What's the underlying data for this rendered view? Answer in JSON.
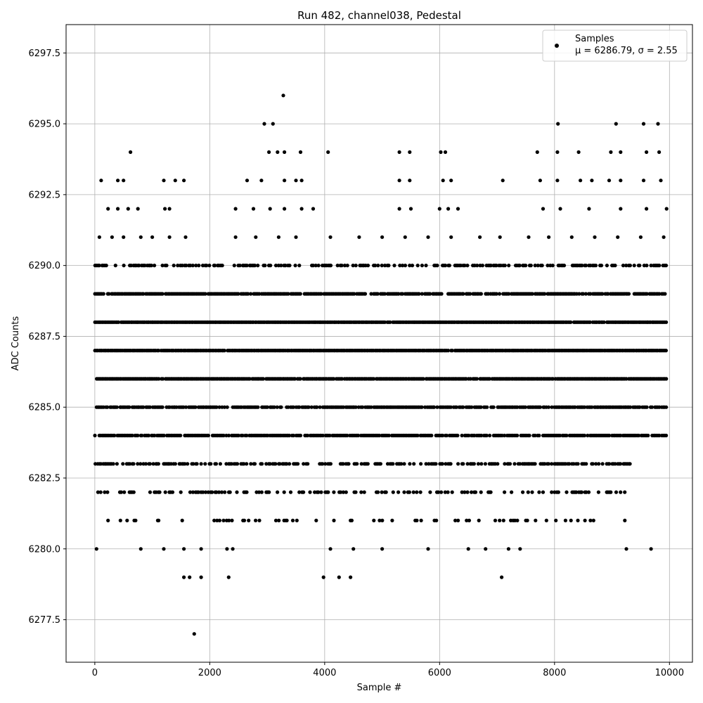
{
  "chart_data": {
    "type": "scatter",
    "title": "Run 482, channel038, Pedestal",
    "xlabel": "Sample #",
    "ylabel": "ADC Counts",
    "xlim": [
      -500,
      10400
    ],
    "ylim": [
      6276.0,
      6298.5
    ],
    "xticks": [
      0,
      2000,
      4000,
      6000,
      8000,
      10000
    ],
    "yticks": [
      6277.5,
      6280.0,
      6282.5,
      6285.0,
      6287.5,
      6290.0,
      6292.5,
      6295.0,
      6297.5
    ],
    "xtick_labels": [
      "0",
      "2000",
      "4000",
      "6000",
      "8000",
      "10000"
    ],
    "ytick_labels": [
      "6277.5",
      "6280.0",
      "6282.5",
      "6285.0",
      "6287.5",
      "6290.0",
      "6292.5",
      "6295.0",
      "6297.5"
    ],
    "grid": true,
    "marker_color": "#000000",
    "legend": {
      "placement": "top-right",
      "entries": [
        "Samples",
        "μ = 6286.79, σ = 2.55"
      ]
    },
    "series": [
      {
        "name": "Samples",
        "x_range": [
          0,
          9950
        ],
        "count": 10000,
        "levels": [
          6277,
          6279,
          6280,
          6281,
          6282,
          6283,
          6284,
          6285,
          6286,
          6287,
          6288,
          6289,
          6290,
          6291,
          6292,
          6293,
          6294,
          6295,
          6296
        ],
        "points": [
          [
            1730,
            6277
          ],
          [
            3280,
            6296
          ],
          [
            2950,
            6295
          ],
          [
            3100,
            6295
          ],
          [
            8060,
            6295
          ],
          [
            9070,
            6295
          ],
          [
            9550,
            6295
          ],
          [
            9800,
            6295
          ],
          [
            620,
            6294
          ],
          [
            3030,
            6294
          ],
          [
            3180,
            6294
          ],
          [
            3300,
            6294
          ],
          [
            3580,
            6294
          ],
          [
            4060,
            6294
          ],
          [
            5300,
            6294
          ],
          [
            5480,
            6294
          ],
          [
            6020,
            6294
          ],
          [
            6100,
            6294
          ],
          [
            7700,
            6294
          ],
          [
            8050,
            6294
          ],
          [
            8420,
            6294
          ],
          [
            8980,
            6294
          ],
          [
            9150,
            6294
          ],
          [
            9600,
            6294
          ],
          [
            9820,
            6294
          ],
          [
            110,
            6293
          ],
          [
            400,
            6293
          ],
          [
            500,
            6293
          ],
          [
            1200,
            6293
          ],
          [
            1400,
            6293
          ],
          [
            1550,
            6293
          ],
          [
            2650,
            6293
          ],
          [
            2900,
            6293
          ],
          [
            3300,
            6293
          ],
          [
            3500,
            6293
          ],
          [
            3600,
            6293
          ],
          [
            5300,
            6293
          ],
          [
            5480,
            6293
          ],
          [
            6060,
            6293
          ],
          [
            6200,
            6293
          ],
          [
            7100,
            6293
          ],
          [
            7750,
            6293
          ],
          [
            8050,
            6293
          ],
          [
            8450,
            6293
          ],
          [
            8650,
            6293
          ],
          [
            8950,
            6293
          ],
          [
            9150,
            6293
          ],
          [
            9550,
            6293
          ],
          [
            9850,
            6293
          ],
          [
            230,
            6292
          ],
          [
            400,
            6292
          ],
          [
            580,
            6292
          ],
          [
            750,
            6292
          ],
          [
            1220,
            6292
          ],
          [
            1300,
            6292
          ],
          [
            2450,
            6292
          ],
          [
            2760,
            6292
          ],
          [
            3050,
            6292
          ],
          [
            3300,
            6292
          ],
          [
            3600,
            6292
          ],
          [
            3800,
            6292
          ],
          [
            5300,
            6292
          ],
          [
            5500,
            6292
          ],
          [
            6000,
            6292
          ],
          [
            6150,
            6292
          ],
          [
            6320,
            6292
          ],
          [
            7800,
            6292
          ],
          [
            8100,
            6292
          ],
          [
            8600,
            6292
          ],
          [
            9150,
            6292
          ],
          [
            9600,
            6292
          ],
          [
            9950,
            6292
          ],
          [
            80,
            6291
          ],
          [
            300,
            6291
          ],
          [
            500,
            6291
          ],
          [
            800,
            6291
          ],
          [
            1000,
            6291
          ],
          [
            1300,
            6291
          ],
          [
            1580,
            6291
          ],
          [
            2450,
            6291
          ],
          [
            2800,
            6291
          ],
          [
            3200,
            6291
          ],
          [
            3500,
            6291
          ],
          [
            4100,
            6291
          ],
          [
            4600,
            6291
          ],
          [
            5000,
            6291
          ],
          [
            5400,
            6291
          ],
          [
            5800,
            6291
          ],
          [
            6200,
            6291
          ],
          [
            6700,
            6291
          ],
          [
            7050,
            6291
          ],
          [
            7550,
            6291
          ],
          [
            7900,
            6291
          ],
          [
            8300,
            6291
          ],
          [
            8700,
            6291
          ],
          [
            9100,
            6291
          ],
          [
            9500,
            6291
          ],
          [
            9900,
            6291
          ],
          [
            2400,
            6280
          ],
          [
            4100,
            6280
          ],
          [
            4500,
            6280
          ],
          [
            5000,
            6280
          ],
          [
            5800,
            6280
          ],
          [
            6500,
            6280
          ],
          [
            6800,
            6280
          ],
          [
            7200,
            6280
          ],
          [
            7400,
            6280
          ],
          [
            9250,
            6280
          ],
          [
            9680,
            6280
          ],
          [
            30,
            6280
          ],
          [
            800,
            6280
          ],
          [
            1200,
            6280
          ],
          [
            1550,
            6280
          ],
          [
            1850,
            6280
          ],
          [
            2300,
            6280
          ],
          [
            1550,
            6279
          ],
          [
            1650,
            6279
          ],
          [
            1850,
            6279
          ],
          [
            2330,
            6279
          ],
          [
            3980,
            6279
          ],
          [
            4250,
            6279
          ],
          [
            4450,
            6279
          ],
          [
            7080,
            6279
          ]
        ],
        "dense_runs": [
          {
            "y": 6290,
            "from": 0,
            "to": 9950
          },
          {
            "y": 6289,
            "from": 0,
            "to": 9950
          },
          {
            "y": 6288,
            "from": 0,
            "to": 9950
          },
          {
            "y": 6287,
            "from": 0,
            "to": 9950
          },
          {
            "y": 6286,
            "from": 0,
            "to": 9950
          },
          {
            "y": 6285,
            "from": 0,
            "to": 9950
          },
          {
            "y": 6284,
            "from": 0,
            "to": 9950
          },
          {
            "y": 6283,
            "from": 0,
            "to": 9350
          },
          {
            "y": 6282,
            "from": 0,
            "to": 9350
          },
          {
            "y": 6281,
            "from": 30,
            "to": 9350
          }
        ]
      }
    ]
  }
}
